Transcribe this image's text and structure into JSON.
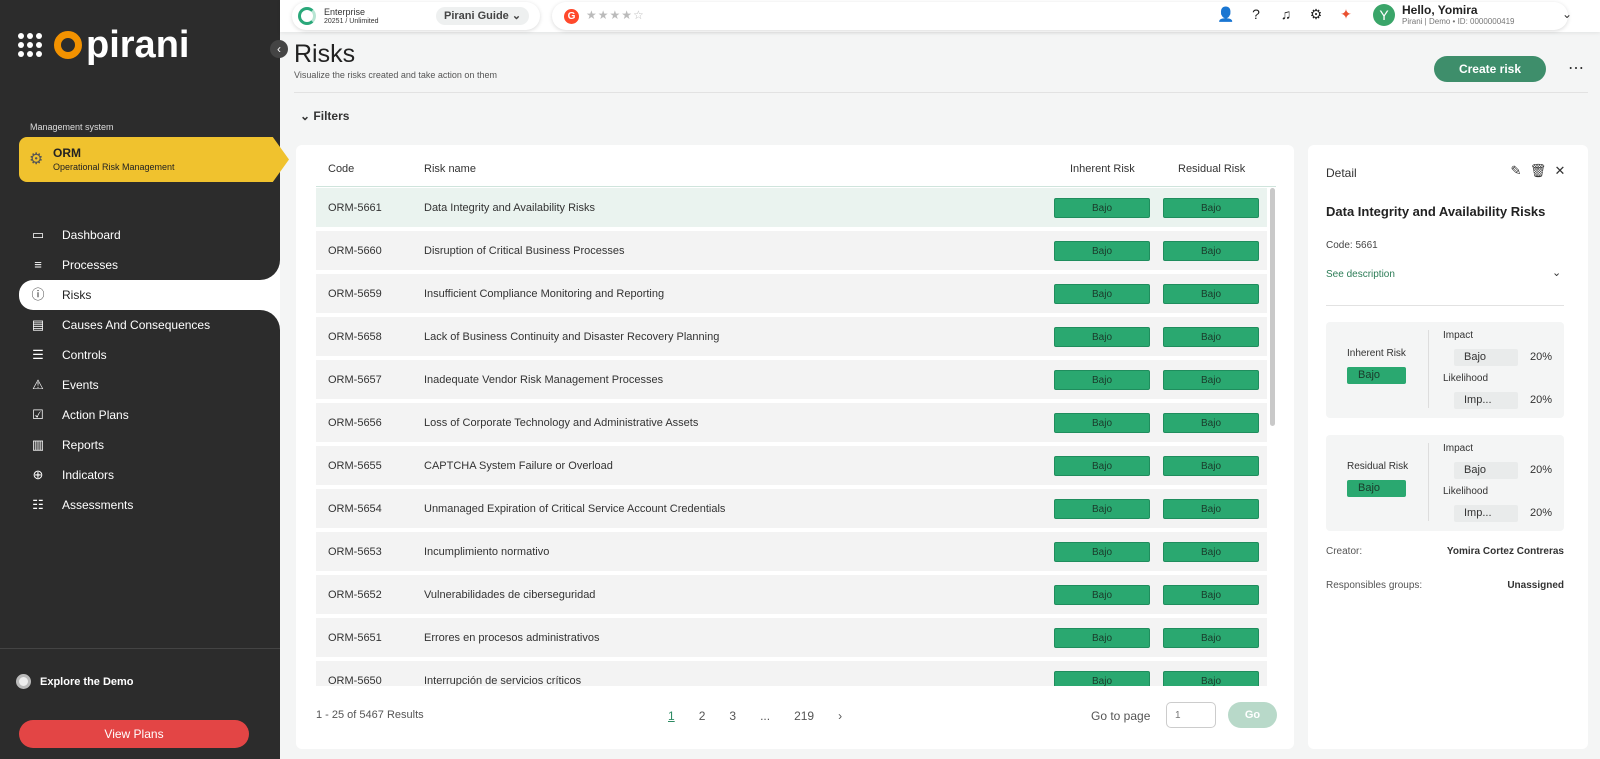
{
  "brand": {
    "name": "pirani"
  },
  "sidebar": {
    "management_label": "Management system",
    "orm": {
      "title": "ORM",
      "subtitle": "Operational Risk Management"
    },
    "items": [
      {
        "label": "Dashboard",
        "icon": "monitor-icon"
      },
      {
        "label": "Processes",
        "icon": "processes-icon"
      },
      {
        "label": "Risks",
        "icon": "alert-circle-icon"
      },
      {
        "label": "Causes And Consequences",
        "icon": "causes-icon"
      },
      {
        "label": "Controls",
        "icon": "sliders-icon"
      },
      {
        "label": "Events",
        "icon": "warning-icon"
      },
      {
        "label": "Action Plans",
        "icon": "checkbox-icon"
      },
      {
        "label": "Reports",
        "icon": "chart-icon"
      },
      {
        "label": "Indicators",
        "icon": "crosshair-icon"
      },
      {
        "label": "Assessments",
        "icon": "assessments-icon"
      }
    ],
    "active_item": "Risks",
    "explore": "Explore the Demo",
    "view_plans": "View Plans"
  },
  "topbar": {
    "plan": "Enterprise",
    "plan_sub": "20251 / Unlimited",
    "guide": "Pirani Guide",
    "rating_icon": "G",
    "stars": "★★★★☆",
    "greeting": "Hello, Yomira",
    "user_sub": "Pirani | Demo • ID: 0000000419",
    "avatar_initial": "Y"
  },
  "page": {
    "title": "Risks",
    "subtitle": "Visualize the risks created and take action on them",
    "create_button": "Create risk",
    "filters": "Filters"
  },
  "table": {
    "headers": {
      "code": "Code",
      "name": "Risk name",
      "inherent": "Inherent Risk",
      "residual": "Residual Risk"
    },
    "rows": [
      {
        "code": "ORM-5661",
        "name": "Data Integrity and Availability Risks",
        "inherent": "Bajo",
        "residual": "Bajo"
      },
      {
        "code": "ORM-5660",
        "name": "Disruption of Critical Business Processes",
        "inherent": "Bajo",
        "residual": "Bajo"
      },
      {
        "code": "ORM-5659",
        "name": "Insufficient Compliance Monitoring and Reporting",
        "inherent": "Bajo",
        "residual": "Bajo"
      },
      {
        "code": "ORM-5658",
        "name": "Lack of Business Continuity and Disaster Recovery Planning",
        "inherent": "Bajo",
        "residual": "Bajo"
      },
      {
        "code": "ORM-5657",
        "name": "Inadequate Vendor Risk Management Processes",
        "inherent": "Bajo",
        "residual": "Bajo"
      },
      {
        "code": "ORM-5656",
        "name": "Loss of Corporate Technology and Administrative Assets",
        "inherent": "Bajo",
        "residual": "Bajo"
      },
      {
        "code": "ORM-5655",
        "name": "CAPTCHA System Failure or Overload",
        "inherent": "Bajo",
        "residual": "Bajo"
      },
      {
        "code": "ORM-5654",
        "name": "Unmanaged Expiration of Critical Service Account Credentials",
        "inherent": "Bajo",
        "residual": "Bajo"
      },
      {
        "code": "ORM-5653",
        "name": "Incumplimiento normativo",
        "inherent": "Bajo",
        "residual": "Bajo"
      },
      {
        "code": "ORM-5652",
        "name": "Vulnerabilidades de ciberseguridad",
        "inherent": "Bajo",
        "residual": "Bajo"
      },
      {
        "code": "ORM-5651",
        "name": "Errores en procesos administrativos",
        "inherent": "Bajo",
        "residual": "Bajo"
      },
      {
        "code": "ORM-5650",
        "name": "Interrupción de servicios críticos",
        "inherent": "Bajo",
        "residual": "Bajo"
      }
    ],
    "results": "1 - 25 of 5467 Results",
    "pages": [
      "1",
      "2",
      "3",
      "...",
      "219"
    ],
    "current_page": "1",
    "go_to_label": "Go to page",
    "go_placeholder": "1",
    "go_button": "Go"
  },
  "detail": {
    "label": "Detail",
    "title": "Data Integrity and Availability Risks",
    "code": "Code: 5661",
    "see_description": "See description",
    "inherent": {
      "label": "Inherent Risk",
      "level": "Bajo",
      "impact_label": "Impact",
      "impact_value": "Bajo",
      "impact_pct": "20%",
      "likelihood_label": "Likelihood",
      "likelihood_value": "Imp...",
      "likelihood_pct": "20%"
    },
    "residual": {
      "label": "Residual Risk",
      "level": "Bajo",
      "impact_label": "Impact",
      "impact_value": "Bajo",
      "impact_pct": "20%",
      "likelihood_label": "Likelihood",
      "likelihood_value": "Imp...",
      "likelihood_pct": "20%"
    },
    "creator_label": "Creator:",
    "creator": "Yomira Cortez Contreras",
    "groups_label": "Responsibles groups:",
    "groups": "Unassigned"
  },
  "colors": {
    "accent_green": "#3e8e6b",
    "badge_green": "#2aa870",
    "orm_yellow": "#f0c22e",
    "sidebar_bg": "#2c2c2c",
    "plans_red": "#e34545"
  }
}
